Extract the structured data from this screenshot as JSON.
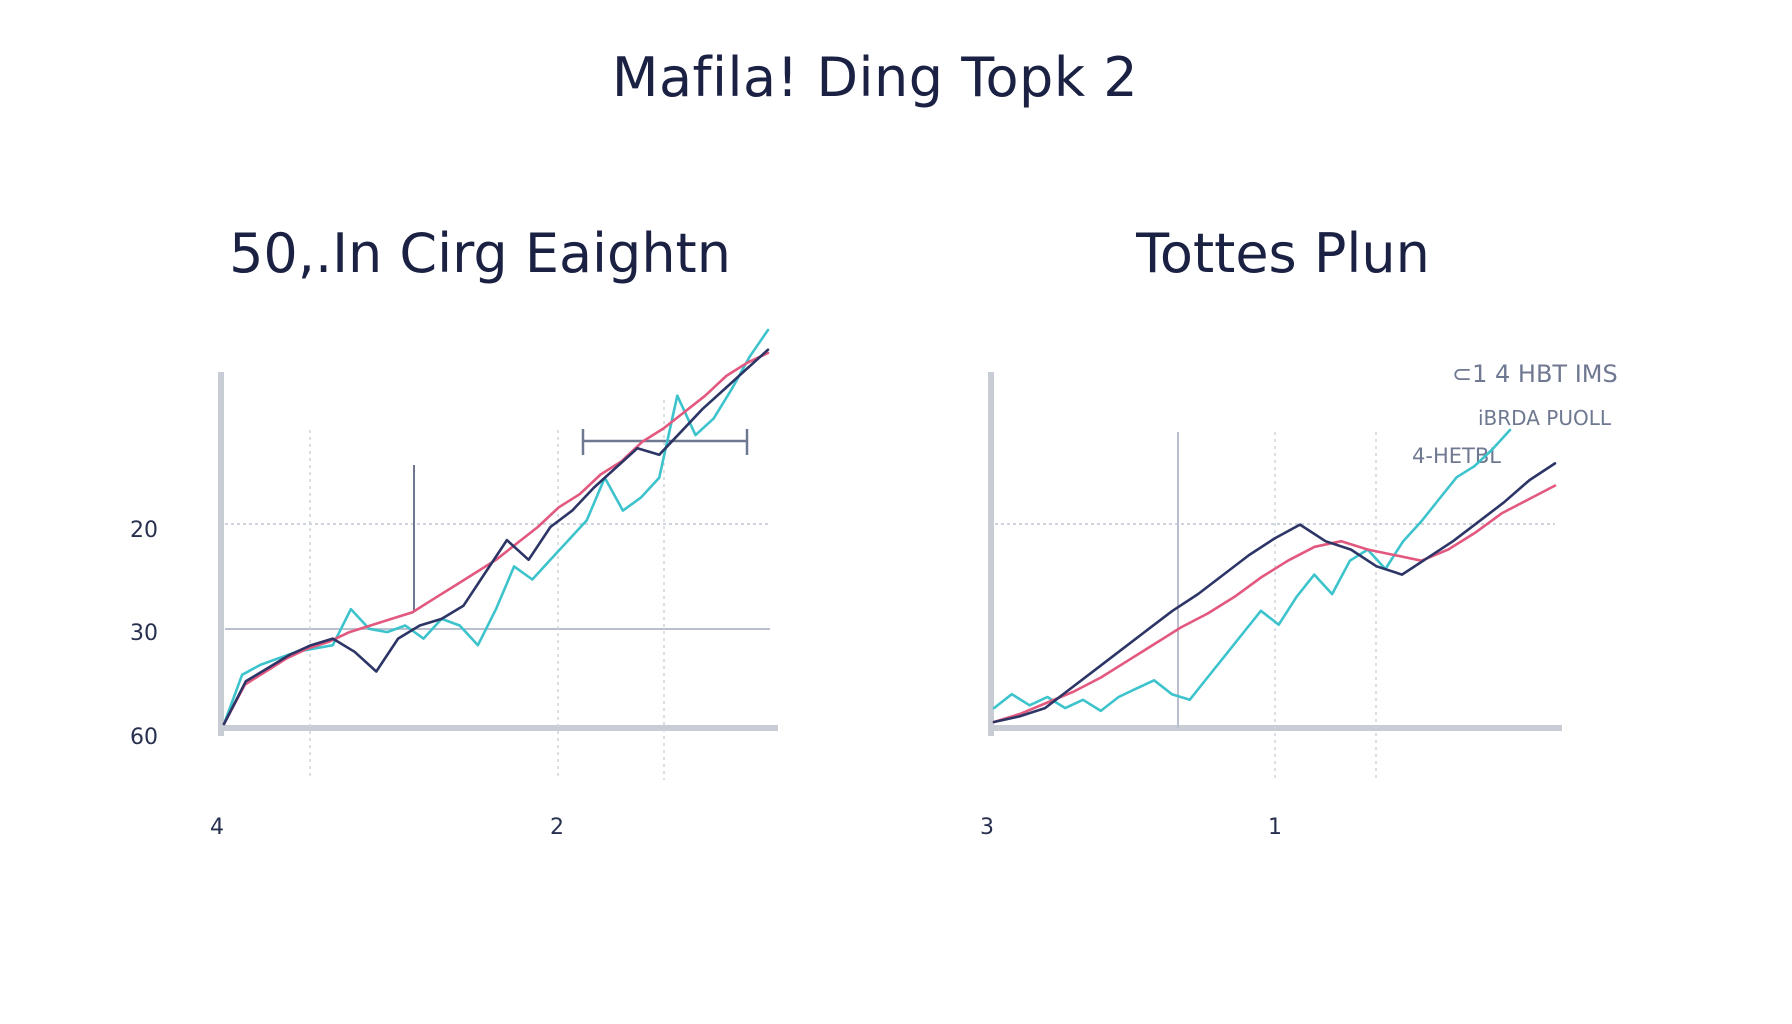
{
  "title": "Mafila! Ding Topk 2",
  "chart_data": [
    {
      "type": "line",
      "title": "50,.In Cirg Eaightn",
      "yticks": [
        "20",
        "30",
        "60"
      ],
      "xticks": [
        "4",
        "2"
      ],
      "colors": {
        "cyan": "#3cc3cc",
        "pink": "#e2587e",
        "navy": "#2c3566"
      },
      "series": [
        {
          "color": "cyan",
          "values": [
            0,
            1.5,
            1.8,
            2.0,
            2.2,
            2.3,
            2.4,
            3.5,
            2.9,
            2.8,
            3.0,
            2.6,
            3.2,
            3.0,
            2.4,
            3.5,
            4.8,
            4.4,
            5.0,
            5.6,
            6.2,
            7.5,
            6.5,
            6.9,
            7.5,
            10.0,
            8.8,
            9.3,
            10.2,
            11.2,
            12.0
          ]
        },
        {
          "color": "pink",
          "values": [
            0,
            1.2,
            1.6,
            2.0,
            2.3,
            2.5,
            2.8,
            3.0,
            3.2,
            3.4,
            3.8,
            4.2,
            4.6,
            5.0,
            5.5,
            6.0,
            6.6,
            7.0,
            7.6,
            8.0,
            8.6,
            9.0,
            9.5,
            10.0,
            10.6,
            11.0,
            11.3
          ]
        },
        {
          "color": "navy",
          "values": [
            0,
            1.3,
            1.7,
            2.1,
            2.4,
            2.6,
            2.2,
            1.6,
            2.6,
            3.0,
            3.2,
            3.6,
            4.6,
            5.6,
            5.0,
            6.0,
            6.5,
            7.2,
            7.8,
            8.4,
            8.2,
            8.9,
            9.6,
            10.2,
            10.8,
            11.4
          ]
        }
      ]
    },
    {
      "type": "line",
      "title": "Tottes Plun",
      "xticks": [
        "3",
        "1"
      ],
      "annotations": [
        "⊂1 4 HBT IMS",
        "iBRDA PUOLL",
        "4-HETBL"
      ],
      "colors": {
        "cyan": "#3cc3cc",
        "pink": "#e2587e",
        "navy": "#2c3566"
      },
      "series": [
        {
          "color": "cyan",
          "values": [
            0.5,
            1.0,
            0.6,
            0.9,
            0.5,
            0.8,
            0.4,
            0.9,
            1.2,
            1.5,
            1.0,
            0.8,
            1.6,
            2.4,
            3.2,
            4.0,
            3.5,
            4.5,
            5.3,
            4.6,
            5.8,
            6.2,
            5.5,
            6.5,
            7.2,
            8.0,
            8.8,
            9.2,
            9.8,
            10.5
          ]
        },
        {
          "color": "pink",
          "values": [
            0,
            0.3,
            0.7,
            1.1,
            1.6,
            2.2,
            2.8,
            3.4,
            3.9,
            4.5,
            5.2,
            5.8,
            6.3,
            6.5,
            6.2,
            6.0,
            5.8,
            6.2,
            6.8,
            7.5,
            8.0,
            8.5
          ]
        },
        {
          "color": "navy",
          "values": [
            0,
            0.2,
            0.5,
            1.2,
            1.9,
            2.6,
            3.3,
            4.0,
            4.6,
            5.3,
            6.0,
            6.6,
            7.1,
            6.5,
            6.2,
            5.6,
            5.3,
            5.9,
            6.5,
            7.2,
            7.9,
            8.7,
            9.3
          ]
        }
      ]
    }
  ]
}
